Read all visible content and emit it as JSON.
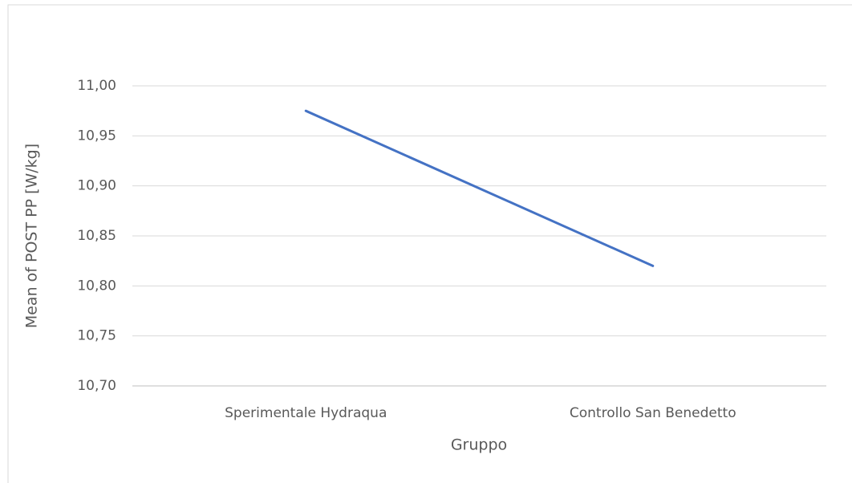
{
  "chart_data": {
    "type": "line",
    "categories": [
      "Sperimentale Hydraqua",
      "Controllo San Benedetto"
    ],
    "series": [
      {
        "name": "Mean of POST PP [W/kg]",
        "color": "#4472c4",
        "values": [
          10.975,
          10.82
        ]
      }
    ],
    "x_label": "Gruppo",
    "y_label": "Mean of POST PP [W/kg]",
    "ylim": [
      10.7,
      11.0
    ],
    "yticks": [
      {
        "value": 10.7,
        "label": "10,70"
      },
      {
        "value": 10.75,
        "label": "10,75"
      },
      {
        "value": 10.8,
        "label": "10,80"
      },
      {
        "value": 10.85,
        "label": "10,85"
      },
      {
        "value": 10.9,
        "label": "10,90"
      },
      {
        "value": 10.95,
        "label": "10,95"
      },
      {
        "value": 11.0,
        "label": "11,00"
      }
    ],
    "grid": true
  }
}
